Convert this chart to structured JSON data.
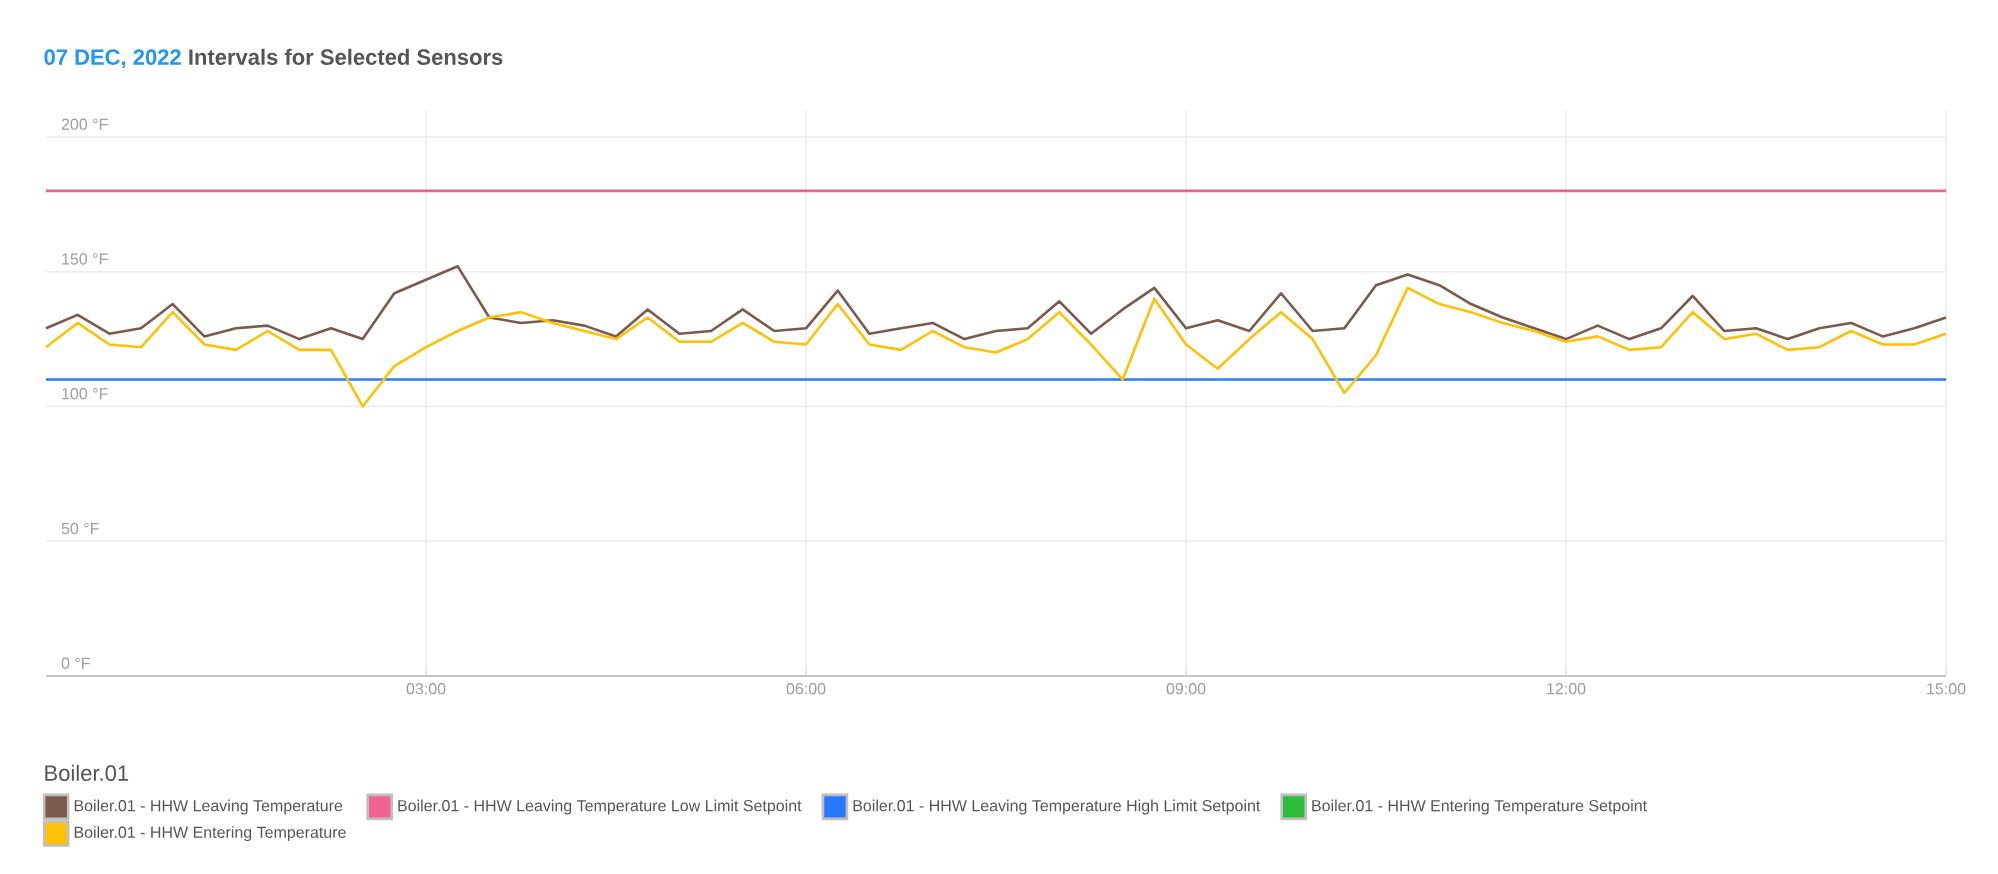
{
  "chart_data": {
    "type": "line",
    "title": "07 DEC, 2022",
    "subtitle": "Intervals for Selected Sensors",
    "legend_title": "Boiler.01",
    "x": [
      0,
      0.25,
      0.5,
      0.75,
      1,
      1.25,
      1.5,
      1.75,
      2,
      2.25,
      2.5,
      2.75,
      3,
      3.25,
      3.5,
      3.75,
      4,
      4.25,
      4.5,
      4.75,
      5,
      5.25,
      5.5,
      5.75,
      6,
      6.25,
      6.5,
      6.75,
      7,
      7.25,
      7.5,
      7.75,
      8,
      8.25,
      8.5,
      8.75,
      9,
      9.25,
      9.5,
      9.75,
      10,
      10.25,
      10.5,
      10.75,
      11,
      11.25,
      11.5,
      11.75,
      12,
      12.25,
      12.5,
      12.75,
      13,
      13.25,
      13.5,
      13.75,
      14,
      14.25,
      14.5,
      14.75,
      15
    ],
    "series": [
      {
        "name": "Boiler.01 - HHW Leaving Temperature",
        "color": "#7b5a4e",
        "values": [
          129,
          134,
          127,
          129,
          138,
          126,
          129,
          130,
          125,
          129,
          125,
          142,
          147,
          152,
          133,
          131,
          132,
          130,
          126,
          136,
          127,
          128,
          136,
          128,
          129,
          143,
          127,
          129,
          131,
          125,
          128,
          129,
          139,
          127,
          136,
          144,
          129,
          132,
          128,
          142,
          128,
          129,
          145,
          149,
          145,
          138,
          133,
          129,
          125,
          130,
          125,
          129,
          141,
          128,
          129,
          125,
          129,
          131,
          126,
          129,
          133
        ]
      },
      {
        "name": "Boiler.01 - HHW Entering Temperature Setpoint",
        "color": "#2ebd3a",
        "values": [
          null,
          null,
          null,
          null,
          null,
          null,
          null,
          null,
          null,
          null,
          null,
          null,
          null,
          null,
          null,
          null,
          null,
          null,
          null,
          null,
          null,
          null,
          null,
          null,
          null,
          null,
          null,
          null,
          null,
          null,
          null,
          null,
          null,
          null,
          null,
          null,
          null,
          null,
          null,
          null,
          null,
          null,
          null,
          null,
          null,
          null,
          null,
          null,
          null,
          null,
          null,
          null,
          null,
          null,
          null,
          null,
          null,
          null,
          null,
          null,
          null
        ]
      },
      {
        "name": "Boiler.01 - HHW Entering Temperature",
        "color": "#ffc107",
        "values": [
          122,
          131,
          123,
          122,
          135,
          123,
          121,
          128,
          121,
          121,
          100,
          115,
          122,
          128,
          133,
          135,
          131,
          128,
          125,
          133,
          124,
          124,
          131,
          124,
          123,
          138,
          123,
          121,
          128,
          122,
          120,
          125,
          135,
          123,
          110,
          140,
          123,
          114,
          125,
          135,
          125,
          105,
          119,
          144,
          138,
          135,
          131,
          128,
          124,
          126,
          121,
          122,
          135,
          125,
          127,
          121,
          122,
          128,
          123,
          123,
          127
        ]
      }
    ],
    "xlim": [
      0,
      15
    ],
    "ylim": [
      0,
      210
    ],
    "xticks": [
      {
        "value": 3,
        "label": "03:00"
      },
      {
        "value": 6,
        "label": "06:00"
      },
      {
        "value": 9,
        "label": "09:00"
      },
      {
        "value": 12,
        "label": "12:00"
      },
      {
        "value": 15,
        "label": "15:00"
      }
    ],
    "yticks": [
      {
        "value": 0,
        "label": "0 °F"
      },
      {
        "value": 50,
        "label": "50 °F"
      },
      {
        "value": 100,
        "label": "100 °F"
      },
      {
        "value": 150,
        "label": "150 °F"
      },
      {
        "value": 200,
        "label": "200 °F"
      }
    ],
    "ref_lines": [
      {
        "axis": "y",
        "value": 180,
        "label": "Boiler.01 - HHW Leaving Temperature Low Limit Setpoint",
        "color": "#f06292"
      },
      {
        "axis": "y",
        "value": 110,
        "label": "Boiler.01 - HHW Leaving Temperature High Limit Setpoint",
        "color": "#2979ff"
      }
    ],
    "grid": true,
    "legend": "bottom"
  }
}
